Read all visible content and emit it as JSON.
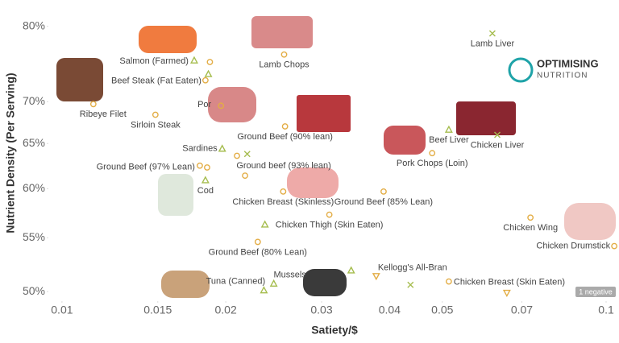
{
  "chart_data": {
    "type": "scatter",
    "x_label": "Satiety/$",
    "y_label": "Nutrient Density (Per Serving)",
    "x_scale": "log",
    "y_scale": "log",
    "xlim": [
      0.00944,
      0.1056
    ],
    "ylim": [
      49.3,
      82.4
    ],
    "xticks": [
      0.01,
      0.015,
      0.02,
      0.03,
      0.04,
      0.05,
      0.07,
      0.1
    ],
    "yticks": [
      {
        "value": 50,
        "label": "50%"
      },
      {
        "value": 55,
        "label": "55%"
      },
      {
        "value": 60,
        "label": "60%"
      },
      {
        "value": 65,
        "label": "65%"
      },
      {
        "value": 70,
        "label": "70%"
      },
      {
        "value": 80,
        "label": "80%"
      }
    ],
    "x": [
      0.0618,
      0.0175,
      0.0187,
      0.0256,
      0.01835,
      0.01858,
      0.01142,
      0.01485,
      0.0196,
      0.0257,
      0.0514,
      0.0631,
      0.0479,
      0.0197,
      0.02097,
      0.0219,
      0.01792,
      0.01848,
      0.0217,
      0.01835,
      0.0255,
      0.039,
      0.031,
      0.0236,
      0.0726,
      0.1035,
      0.0229,
      0.0378,
      0.0437,
      0.0514,
      0.0657,
      0.0245,
      0.034,
      0.0235
    ],
    "values": [
      79.0,
      75.3,
      75.1,
      76.1,
      72.7,
      73.5,
      69.7,
      68.4,
      69.5,
      67.0,
      66.6,
      66.0,
      63.9,
      64.4,
      63.6,
      63.8,
      62.5,
      62.3,
      61.4,
      60.9,
      59.7,
      59.7,
      57.3,
      56.3,
      57.0,
      54.2,
      54.6,
      51.4,
      50.6,
      50.9,
      49.9,
      50.7,
      51.9,
      50.1
    ],
    "labels": [
      "Lamb Liver",
      "Salmon (Farmed)",
      null,
      "Lamb Chops",
      "Beef Steak (Fat Eaten)",
      null,
      "Ribeye Filet",
      "Sirloin Steak",
      "Por",
      "Ground Beef (90% lean)",
      "Beef Liver",
      "Chicken Liver",
      "Pork Chops (Loin)",
      "Sardines",
      null,
      null,
      "Ground Beef (97% Lean)",
      null,
      "Ground beef (93% lean)",
      "Cod",
      "Chicken Breast (Skinless)",
      "Ground Beef (85% Lean)",
      "Chicken Thigh (Skin Eaten)",
      null,
      "Chicken Wing",
      "Chicken Drumstick",
      "Ground Beef (80% Lean)",
      "Kellogg's All-Bran",
      null,
      "Chicken Breast (Skin Eaten)",
      null,
      "Mussels",
      null,
      "Tuna (Canned)"
    ],
    "markers": [
      "x",
      "triangle",
      "circle",
      "circle",
      "circle",
      "triangle",
      "circle",
      "circle",
      "circle",
      "circle",
      "triangle",
      "x",
      "circle",
      "triangle",
      "circle",
      "x",
      "circle",
      "circle",
      "circle",
      "triangle",
      "circle",
      "circle",
      "circle",
      "triangle",
      "circle",
      "circle",
      "circle",
      "triangle-down",
      "x",
      "circle",
      "triangle-down",
      "triangle",
      "triangle",
      "triangle"
    ],
    "marker_colors": {
      "circle": "#e3ad45",
      "triangle": "#a6bd4f",
      "x": "#a6bd4f",
      "triangle-down": "#e3ad45"
    },
    "logo": [
      "OPTIMISING",
      "NUTRITION"
    ],
    "badge": "1 negative"
  }
}
